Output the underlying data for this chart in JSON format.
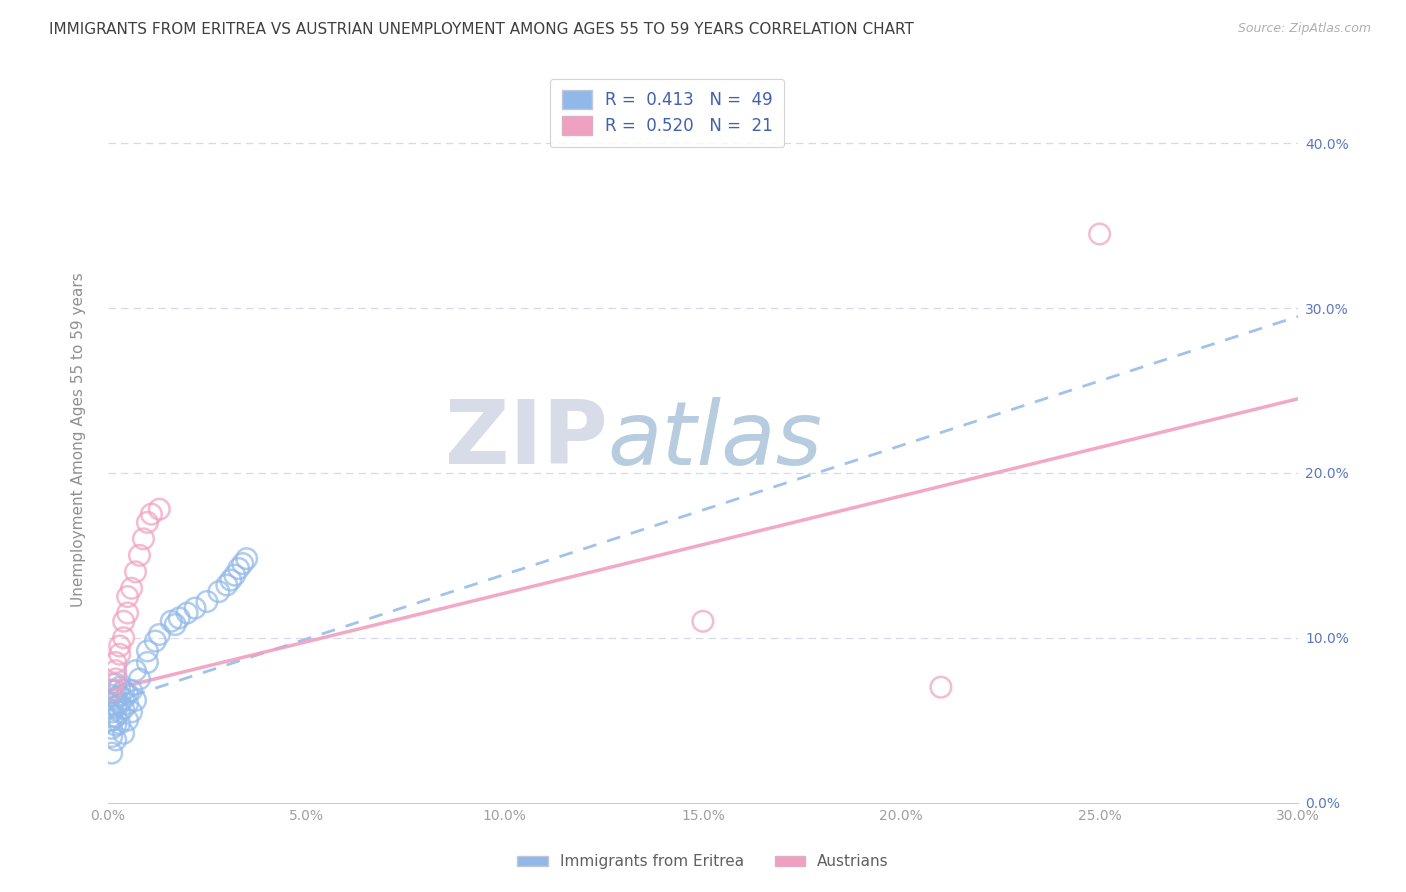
{
  "title": "IMMIGRANTS FROM ERITREA VS AUSTRIAN UNEMPLOYMENT AMONG AGES 55 TO 59 YEARS CORRELATION CHART",
  "source": "Source: ZipAtlas.com",
  "ylabel": "Unemployment Among Ages 55 to 59 years",
  "xlim": [
    0.0,
    0.3
  ],
  "ylim": [
    0.0,
    0.44
  ],
  "xticks": [
    0.0,
    0.05,
    0.1,
    0.15,
    0.2,
    0.25,
    0.3
  ],
  "yticks": [
    0.0,
    0.1,
    0.2,
    0.3,
    0.4
  ],
  "xtick_labels": [
    "0.0%",
    "5.0%",
    "10.0%",
    "15.0%",
    "20.0%",
    "25.0%",
    "30.0%"
  ],
  "ytick_labels_right": [
    "0.0%",
    "10.0%",
    "20.0%",
    "30.0%",
    "40.0%"
  ],
  "blue_scatter_x": [
    0.001,
    0.001,
    0.001,
    0.001,
    0.001,
    0.001,
    0.001,
    0.001,
    0.002,
    0.002,
    0.002,
    0.002,
    0.002,
    0.002,
    0.002,
    0.003,
    0.003,
    0.003,
    0.003,
    0.003,
    0.004,
    0.004,
    0.004,
    0.004,
    0.005,
    0.005,
    0.005,
    0.006,
    0.006,
    0.007,
    0.007,
    0.008,
    0.01,
    0.01,
    0.012,
    0.013,
    0.016,
    0.017,
    0.018,
    0.02,
    0.022,
    0.025,
    0.028,
    0.03,
    0.031,
    0.032,
    0.033,
    0.034,
    0.035
  ],
  "blue_scatter_y": [
    0.068,
    0.065,
    0.06,
    0.055,
    0.05,
    0.045,
    0.04,
    0.03,
    0.072,
    0.068,
    0.063,
    0.058,
    0.052,
    0.047,
    0.038,
    0.07,
    0.065,
    0.06,
    0.055,
    0.048,
    0.068,
    0.063,
    0.057,
    0.042,
    0.066,
    0.06,
    0.05,
    0.068,
    0.055,
    0.08,
    0.062,
    0.075,
    0.092,
    0.085,
    0.098,
    0.102,
    0.11,
    0.108,
    0.112,
    0.115,
    0.118,
    0.122,
    0.128,
    0.132,
    0.135,
    0.138,
    0.142,
    0.145,
    0.148
  ],
  "pink_scatter_x": [
    0.001,
    0.001,
    0.002,
    0.002,
    0.002,
    0.003,
    0.003,
    0.004,
    0.004,
    0.005,
    0.005,
    0.006,
    0.007,
    0.008,
    0.009,
    0.01,
    0.011,
    0.013,
    0.15,
    0.21,
    0.25
  ],
  "pink_scatter_y": [
    0.068,
    0.072,
    0.075,
    0.08,
    0.085,
    0.09,
    0.095,
    0.1,
    0.11,
    0.115,
    0.125,
    0.13,
    0.14,
    0.15,
    0.16,
    0.17,
    0.175,
    0.178,
    0.11,
    0.07,
    0.345
  ],
  "blue_line_x": [
    0.0,
    0.3
  ],
  "blue_line_y": [
    0.06,
    0.295
  ],
  "pink_line_x": [
    0.0,
    0.3
  ],
  "pink_line_y": [
    0.068,
    0.245
  ],
  "watermark_zip": "ZIP",
  "watermark_atlas": "atlas",
  "watermark_color_zip": "#d8dce8",
  "watermark_color_atlas": "#b8cce0",
  "title_color": "#404040",
  "title_fontsize": 11,
  "axis_label_color": "#909090",
  "tick_color": "#a0a0a0",
  "right_tick_color": "#5878c0",
  "blue_color": "#90b8e8",
  "blue_edge_color": "#6090d0",
  "pink_color": "#f0a0c0",
  "pink_edge_color": "#e06090",
  "grid_color": "#d8d8e8",
  "background_color": "#ffffff"
}
